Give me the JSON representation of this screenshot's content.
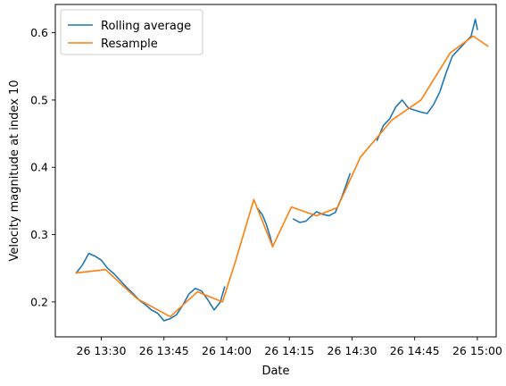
{
  "chart_data": {
    "type": "line",
    "title": "",
    "xlabel": "Date",
    "ylabel": "Velocity magnitude at index 10",
    "x_format": "datetime",
    "xlim": [
      "2000-01-26 13:19:00",
      "2000-01-26 15:04:30"
    ],
    "ylim": [
      0.148,
      0.642
    ],
    "x_ticks": [
      {
        "value": "2000-01-26 13:30",
        "label": "26 13:30"
      },
      {
        "value": "2000-01-26 13:45",
        "label": "26 13:45"
      },
      {
        "value": "2000-01-26 14:00",
        "label": "26 14:00"
      },
      {
        "value": "2000-01-26 14:15",
        "label": "26 14:15"
      },
      {
        "value": "2000-01-26 14:30",
        "label": "26 14:30"
      },
      {
        "value": "2000-01-26 14:45",
        "label": "26 14:45"
      },
      {
        "value": "2000-01-26 15:00",
        "label": "26 15:00"
      }
    ],
    "y_ticks": [
      {
        "value": 0.2,
        "label": "0.2"
      },
      {
        "value": 0.3,
        "label": "0.3"
      },
      {
        "value": 0.4,
        "label": "0.4"
      },
      {
        "value": 0.5,
        "label": "0.5"
      },
      {
        "value": 0.6,
        "label": "0.6"
      }
    ],
    "grid": false,
    "legend_position": "top-left",
    "series": [
      {
        "name": "Rolling average",
        "color": "#1f77b4",
        "segments": [
          [
            [
              "2000-01-26 13:24:00",
              0.243
            ],
            [
              "2000-01-26 13:25:30",
              0.255
            ],
            [
              "2000-01-26 13:27:00",
              0.272
            ],
            [
              "2000-01-26 13:28:30",
              0.268
            ],
            [
              "2000-01-26 13:30:00",
              0.262
            ],
            [
              "2000-01-26 13:31:30",
              0.25
            ],
            [
              "2000-01-26 13:33:00",
              0.242
            ],
            [
              "2000-01-26 13:34:30",
              0.232
            ],
            [
              "2000-01-26 13:36:00",
              0.222
            ],
            [
              "2000-01-26 13:37:30",
              0.213
            ],
            [
              "2000-01-26 13:39:00",
              0.203
            ],
            [
              "2000-01-26 13:40:30",
              0.196
            ],
            [
              "2000-01-26 13:42:00",
              0.188
            ],
            [
              "2000-01-26 13:43:30",
              0.183
            ],
            [
              "2000-01-26 13:45:00",
              0.172
            ],
            [
              "2000-01-26 13:46:30",
              0.175
            ],
            [
              "2000-01-26 13:48:00",
              0.181
            ],
            [
              "2000-01-26 13:49:30",
              0.195
            ],
            [
              "2000-01-26 13:51:00",
              0.212
            ],
            [
              "2000-01-26 13:52:30",
              0.22
            ],
            [
              "2000-01-26 13:54:00",
              0.216
            ],
            [
              "2000-01-26 13:55:30",
              0.203
            ],
            [
              "2000-01-26 13:57:00",
              0.188
            ],
            [
              "2000-01-26 13:58:30",
              0.2
            ],
            [
              "2000-01-26 13:59:30",
              0.222
            ]
          ],
          [
            [
              "2000-01-26 14:07:30",
              0.338
            ],
            [
              "2000-01-26 14:08:30",
              0.33
            ],
            [
              "2000-01-26 14:09:30",
              0.315
            ],
            [
              "2000-01-26 14:10:30",
              0.295
            ],
            [
              "2000-01-26 14:11:00",
              0.282
            ]
          ],
          [
            [
              "2000-01-26 14:16:00",
              0.323
            ],
            [
              "2000-01-26 14:17:30",
              0.318
            ],
            [
              "2000-01-26 14:19:00",
              0.32
            ],
            [
              "2000-01-26 14:20:00",
              0.326
            ],
            [
              "2000-01-26 14:21:30",
              0.334
            ],
            [
              "2000-01-26 14:23:00",
              0.33
            ],
            [
              "2000-01-26 14:24:30",
              0.328
            ],
            [
              "2000-01-26 14:26:00",
              0.333
            ],
            [
              "2000-01-26 14:27:30",
              0.355
            ],
            [
              "2000-01-26 14:28:30",
              0.372
            ],
            [
              "2000-01-26 14:29:30",
              0.39
            ]
          ],
          [
            [
              "2000-01-26 14:36:00",
              0.44
            ],
            [
              "2000-01-26 14:37:30",
              0.462
            ],
            [
              "2000-01-26 14:39:00",
              0.472
            ],
            [
              "2000-01-26 14:40:30",
              0.49
            ],
            [
              "2000-01-26 14:42:00",
              0.5
            ],
            [
              "2000-01-26 14:43:30",
              0.488
            ],
            [
              "2000-01-26 14:45:00",
              0.485
            ],
            [
              "2000-01-26 14:46:30",
              0.482
            ],
            [
              "2000-01-26 14:48:00",
              0.48
            ],
            [
              "2000-01-26 14:49:30",
              0.493
            ],
            [
              "2000-01-26 14:51:00",
              0.512
            ],
            [
              "2000-01-26 14:52:30",
              0.54
            ],
            [
              "2000-01-26 14:54:00",
              0.565
            ],
            [
              "2000-01-26 14:55:30",
              0.575
            ],
            [
              "2000-01-26 14:57:00",
              0.585
            ],
            [
              "2000-01-26 14:58:30",
              0.595
            ],
            [
              "2000-01-26 14:59:30",
              0.62
            ],
            [
              "2000-01-26 15:00:00",
              0.605
            ]
          ]
        ]
      },
      {
        "name": "Resample",
        "color": "#ff7f0e",
        "points": [
          [
            "2000-01-26 13:24:00",
            0.243
          ],
          [
            "2000-01-26 13:31:00",
            0.248
          ],
          [
            "2000-01-26 13:38:30",
            0.205
          ],
          [
            "2000-01-26 13:46:30",
            0.178
          ],
          [
            "2000-01-26 13:53:00",
            0.215
          ],
          [
            "2000-01-26 13:59:00",
            0.2
          ],
          [
            "2000-01-26 14:02:00",
            0.258
          ],
          [
            "2000-01-26 14:06:30",
            0.352
          ],
          [
            "2000-01-26 14:11:00",
            0.282
          ],
          [
            "2000-01-26 14:15:30",
            0.341
          ],
          [
            "2000-01-26 14:21:30",
            0.328
          ],
          [
            "2000-01-26 14:26:30",
            0.34
          ],
          [
            "2000-01-26 14:32:00",
            0.415
          ],
          [
            "2000-01-26 14:39:30",
            0.47
          ],
          [
            "2000-01-26 14:46:30",
            0.5
          ],
          [
            "2000-01-26 14:53:30",
            0.57
          ],
          [
            "2000-01-26 14:59:00",
            0.595
          ],
          [
            "2000-01-26 15:02:30",
            0.58
          ]
        ]
      }
    ]
  }
}
